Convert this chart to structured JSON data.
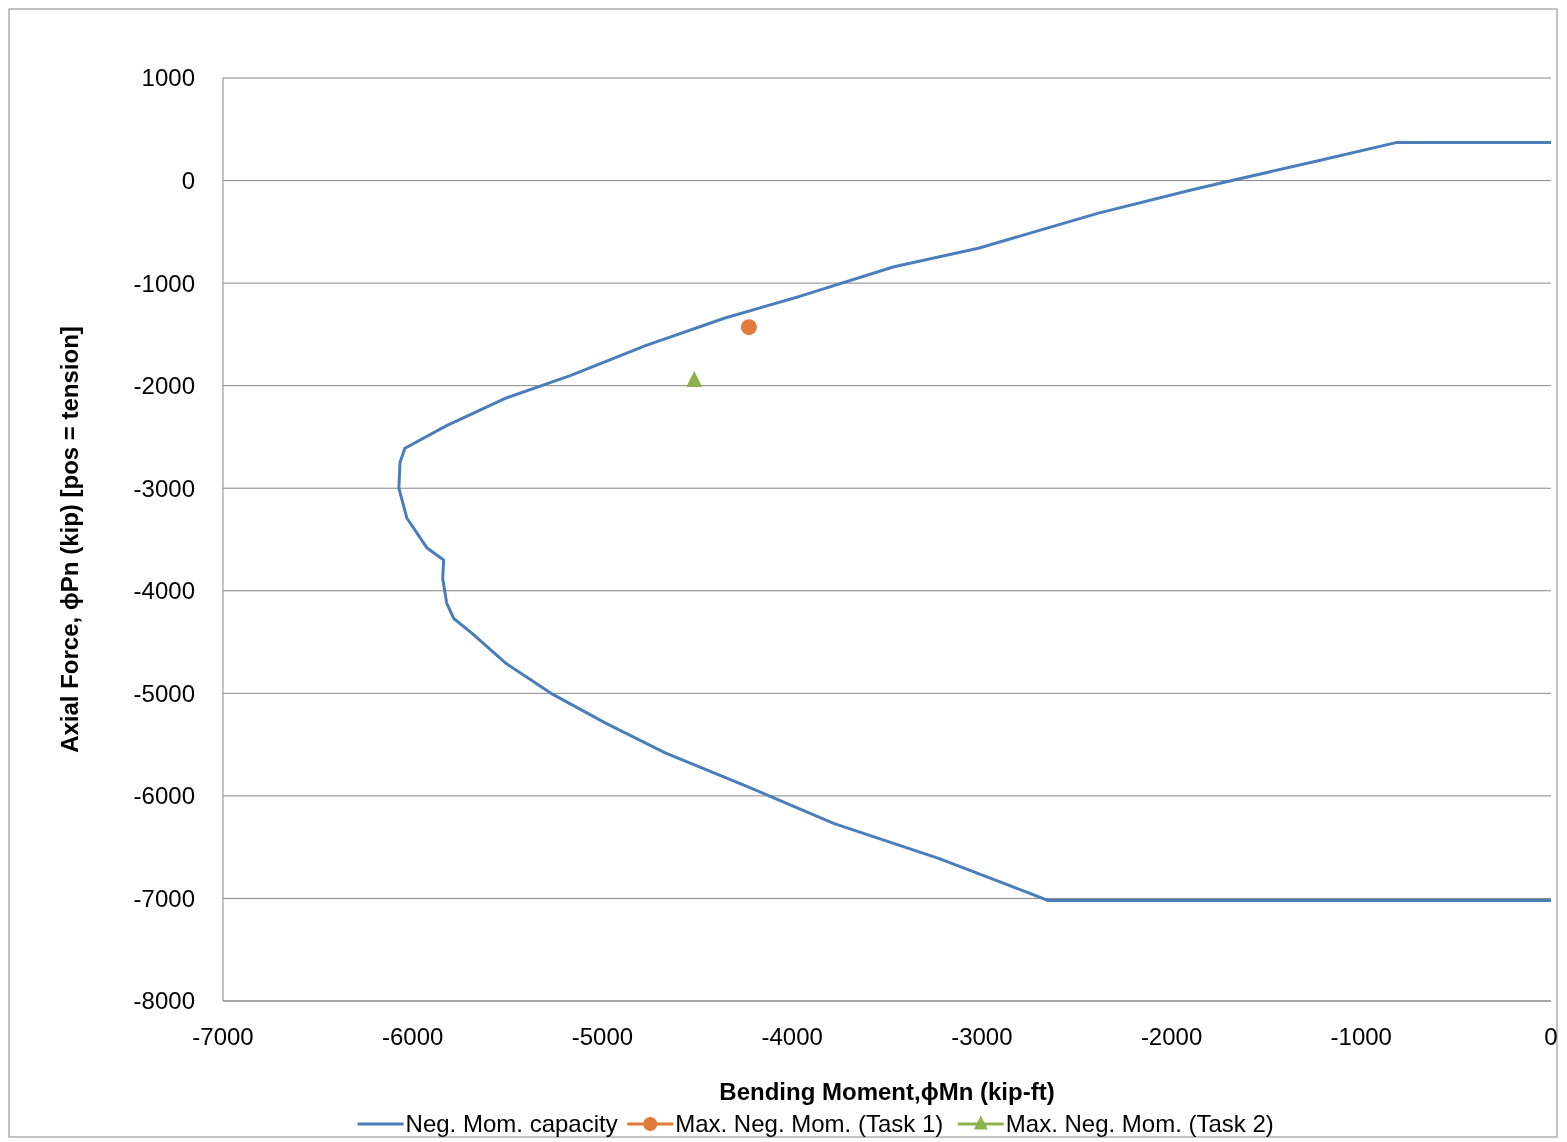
{
  "chart_data": {
    "type": "line",
    "xlabel": "Bending Moment,ϕMn (kip-ft)",
    "ylabel": "Axial Force, ϕPn (kip) [pos = tension]",
    "xlim": [
      -7000,
      0
    ],
    "xticks": [
      -7000,
      -6000,
      -5000,
      -4000,
      -3000,
      -2000,
      -1000,
      0
    ],
    "ylim": [
      -8000,
      1000
    ],
    "yticks": [
      -8000,
      -7000,
      -6000,
      -5000,
      -4000,
      -3000,
      -2000,
      -1000,
      0,
      1000
    ],
    "grid": "y",
    "legend": "bottom",
    "series": [
      {
        "name": "Neg. Mom. capacity",
        "color": "#4a7ebb",
        "marker": "none",
        "x": [
          0,
          -817,
          -1210,
          -1682,
          -1891,
          -2390,
          -3018,
          -3463,
          -3961,
          -4354,
          -4773,
          -5166,
          -5507,
          -5821,
          -6041,
          -6067,
          -6073,
          -6031,
          -5926,
          -5837,
          -5842,
          -5821,
          -5784,
          -5690,
          -5507,
          -5271,
          -4983,
          -4669,
          -4223,
          -3778,
          -3228,
          -2887,
          -2651,
          0
        ],
        "values": [
          370,
          370,
          200,
          0,
          -90,
          -320,
          -660,
          -840,
          -1130,
          -1340,
          -1610,
          -1900,
          -2120,
          -2390,
          -2610,
          -2750,
          -3000,
          -3290,
          -3580,
          -3700,
          -3880,
          -4120,
          -4270,
          -4410,
          -4710,
          -5000,
          -5290,
          -5580,
          -5920,
          -6270,
          -6610,
          -6850,
          -7020,
          -7020
        ]
      },
      {
        "name": "Max. Neg. Mom. (Task 1)",
        "color": "#e07b39",
        "type": "scatter",
        "marker": "circle",
        "x": [
          -4228
        ],
        "values": [
          -1430
        ]
      },
      {
        "name": "Max. Neg. Mom. (Task 2)",
        "color": "#8cb24c",
        "type": "scatter",
        "marker": "triangle",
        "x": [
          -4516
        ],
        "values": [
          -1950
        ]
      }
    ]
  }
}
